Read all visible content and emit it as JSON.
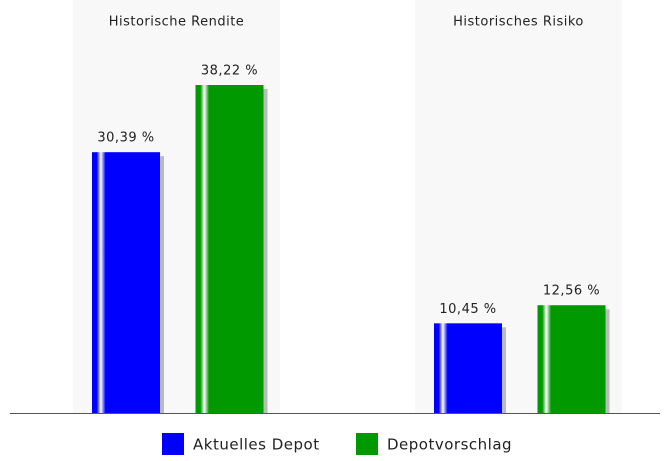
{
  "chart_data": {
    "type": "bar",
    "categories": [
      "Historische Rendite",
      "Historisches Risiko"
    ],
    "series": [
      {
        "name": "Aktuelles Depot",
        "color": "#0000ff",
        "values": [
          30.39,
          10.45
        ],
        "value_labels": [
          "30,39 %",
          "10,45 %"
        ]
      },
      {
        "name": "Depotvorschlag",
        "color": "#009900",
        "values": [
          38.22,
          12.56
        ],
        "value_labels": [
          "38,22 %",
          "12,56 %"
        ]
      }
    ]
  }
}
